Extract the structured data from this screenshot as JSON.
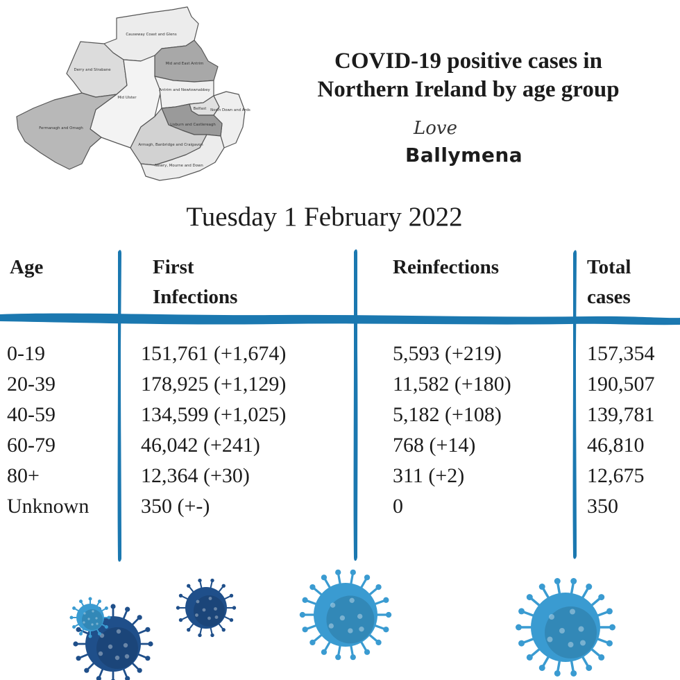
{
  "title_line1": "COVID-19 positive cases in",
  "title_line2": "Northern Ireland by age group",
  "logo": {
    "love": "Love",
    "brand": "Ballymena"
  },
  "date": "Tuesday 1 February 2022",
  "map_regions": [
    "Causeway Coast and Glens",
    "Mid and East Antrim",
    "Derry and Strabane",
    "Mid Ulster",
    "Antrim and Newtownabbey",
    "Belfast",
    "North Down and Ards",
    "Fermanagh and Omagh",
    "Lisburn and Castlereagh",
    "Armagh, Banbridge and Craigavon",
    "Newry, Mourne and Down"
  ],
  "table": {
    "headers": {
      "age": "Age",
      "first_line1": "First",
      "first_line2": "Infections",
      "reinfections": "Reinfections",
      "total_line1": "Total",
      "total_line2": "cases"
    },
    "rows": [
      {
        "age": "0-19",
        "first": "151,761 (+1,674)",
        "reinf": "5,593 (+219)",
        "total": "157,354"
      },
      {
        "age": "20-39",
        "first": "178,925 (+1,129)",
        "reinf": "11,582 (+180)",
        "total": "190,507"
      },
      {
        "age": "40-59",
        "first": "134,599 (+1,025)",
        "reinf": "5,182 (+108)",
        "total": "139,781"
      },
      {
        "age": "60-79",
        "first": "46,042 (+241)",
        "reinf": "768 (+14)",
        "total": "46,810"
      },
      {
        "age": "80+",
        "first": "12,364 (+30)",
        "reinf": "311 (+2)",
        "total": "12,675"
      },
      {
        "age": "Unknown",
        "first": "350 (+-)",
        "reinf": "0",
        "total": "350"
      }
    ]
  },
  "colors": {
    "accent": "#1b78b0",
    "virus_dark": "#1f4f8a",
    "virus_light": "#3a9bd1"
  }
}
